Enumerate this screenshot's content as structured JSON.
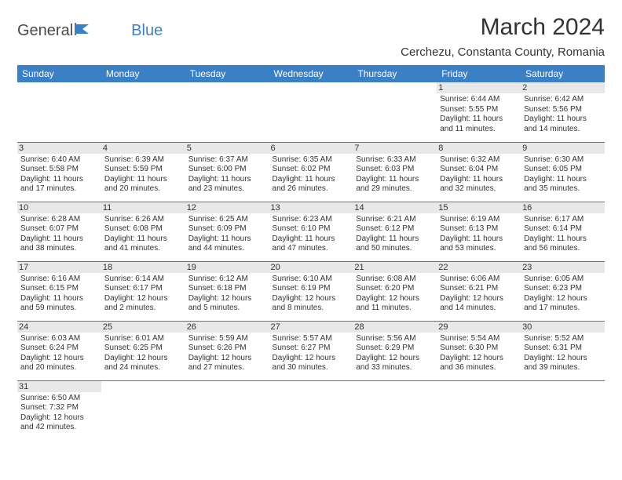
{
  "logo": {
    "part1": "General",
    "part2": "Blue"
  },
  "header": {
    "month_title": "March 2024",
    "location": "Cerchezu, Constanta County, Romania"
  },
  "colors": {
    "header_bg": "#3b7fc4",
    "header_text": "#ffffff",
    "daynum_bg": "#e8e8e8",
    "border": "#3b7fc4",
    "text": "#333333"
  },
  "day_headers": [
    "Sunday",
    "Monday",
    "Tuesday",
    "Wednesday",
    "Thursday",
    "Friday",
    "Saturday"
  ],
  "weeks": [
    [
      {
        "n": "",
        "sunrise": "",
        "sunset": "",
        "daylight1": "",
        "daylight2": ""
      },
      {
        "n": "",
        "sunrise": "",
        "sunset": "",
        "daylight1": "",
        "daylight2": ""
      },
      {
        "n": "",
        "sunrise": "",
        "sunset": "",
        "daylight1": "",
        "daylight2": ""
      },
      {
        "n": "",
        "sunrise": "",
        "sunset": "",
        "daylight1": "",
        "daylight2": ""
      },
      {
        "n": "",
        "sunrise": "",
        "sunset": "",
        "daylight1": "",
        "daylight2": ""
      },
      {
        "n": "1",
        "sunrise": "Sunrise: 6:44 AM",
        "sunset": "Sunset: 5:55 PM",
        "daylight1": "Daylight: 11 hours",
        "daylight2": "and 11 minutes."
      },
      {
        "n": "2",
        "sunrise": "Sunrise: 6:42 AM",
        "sunset": "Sunset: 5:56 PM",
        "daylight1": "Daylight: 11 hours",
        "daylight2": "and 14 minutes."
      }
    ],
    [
      {
        "n": "3",
        "sunrise": "Sunrise: 6:40 AM",
        "sunset": "Sunset: 5:58 PM",
        "daylight1": "Daylight: 11 hours",
        "daylight2": "and 17 minutes."
      },
      {
        "n": "4",
        "sunrise": "Sunrise: 6:39 AM",
        "sunset": "Sunset: 5:59 PM",
        "daylight1": "Daylight: 11 hours",
        "daylight2": "and 20 minutes."
      },
      {
        "n": "5",
        "sunrise": "Sunrise: 6:37 AM",
        "sunset": "Sunset: 6:00 PM",
        "daylight1": "Daylight: 11 hours",
        "daylight2": "and 23 minutes."
      },
      {
        "n": "6",
        "sunrise": "Sunrise: 6:35 AM",
        "sunset": "Sunset: 6:02 PM",
        "daylight1": "Daylight: 11 hours",
        "daylight2": "and 26 minutes."
      },
      {
        "n": "7",
        "sunrise": "Sunrise: 6:33 AM",
        "sunset": "Sunset: 6:03 PM",
        "daylight1": "Daylight: 11 hours",
        "daylight2": "and 29 minutes."
      },
      {
        "n": "8",
        "sunrise": "Sunrise: 6:32 AM",
        "sunset": "Sunset: 6:04 PM",
        "daylight1": "Daylight: 11 hours",
        "daylight2": "and 32 minutes."
      },
      {
        "n": "9",
        "sunrise": "Sunrise: 6:30 AM",
        "sunset": "Sunset: 6:05 PM",
        "daylight1": "Daylight: 11 hours",
        "daylight2": "and 35 minutes."
      }
    ],
    [
      {
        "n": "10",
        "sunrise": "Sunrise: 6:28 AM",
        "sunset": "Sunset: 6:07 PM",
        "daylight1": "Daylight: 11 hours",
        "daylight2": "and 38 minutes."
      },
      {
        "n": "11",
        "sunrise": "Sunrise: 6:26 AM",
        "sunset": "Sunset: 6:08 PM",
        "daylight1": "Daylight: 11 hours",
        "daylight2": "and 41 minutes."
      },
      {
        "n": "12",
        "sunrise": "Sunrise: 6:25 AM",
        "sunset": "Sunset: 6:09 PM",
        "daylight1": "Daylight: 11 hours",
        "daylight2": "and 44 minutes."
      },
      {
        "n": "13",
        "sunrise": "Sunrise: 6:23 AM",
        "sunset": "Sunset: 6:10 PM",
        "daylight1": "Daylight: 11 hours",
        "daylight2": "and 47 minutes."
      },
      {
        "n": "14",
        "sunrise": "Sunrise: 6:21 AM",
        "sunset": "Sunset: 6:12 PM",
        "daylight1": "Daylight: 11 hours",
        "daylight2": "and 50 minutes."
      },
      {
        "n": "15",
        "sunrise": "Sunrise: 6:19 AM",
        "sunset": "Sunset: 6:13 PM",
        "daylight1": "Daylight: 11 hours",
        "daylight2": "and 53 minutes."
      },
      {
        "n": "16",
        "sunrise": "Sunrise: 6:17 AM",
        "sunset": "Sunset: 6:14 PM",
        "daylight1": "Daylight: 11 hours",
        "daylight2": "and 56 minutes."
      }
    ],
    [
      {
        "n": "17",
        "sunrise": "Sunrise: 6:16 AM",
        "sunset": "Sunset: 6:15 PM",
        "daylight1": "Daylight: 11 hours",
        "daylight2": "and 59 minutes."
      },
      {
        "n": "18",
        "sunrise": "Sunrise: 6:14 AM",
        "sunset": "Sunset: 6:17 PM",
        "daylight1": "Daylight: 12 hours",
        "daylight2": "and 2 minutes."
      },
      {
        "n": "19",
        "sunrise": "Sunrise: 6:12 AM",
        "sunset": "Sunset: 6:18 PM",
        "daylight1": "Daylight: 12 hours",
        "daylight2": "and 5 minutes."
      },
      {
        "n": "20",
        "sunrise": "Sunrise: 6:10 AM",
        "sunset": "Sunset: 6:19 PM",
        "daylight1": "Daylight: 12 hours",
        "daylight2": "and 8 minutes."
      },
      {
        "n": "21",
        "sunrise": "Sunrise: 6:08 AM",
        "sunset": "Sunset: 6:20 PM",
        "daylight1": "Daylight: 12 hours",
        "daylight2": "and 11 minutes."
      },
      {
        "n": "22",
        "sunrise": "Sunrise: 6:06 AM",
        "sunset": "Sunset: 6:21 PM",
        "daylight1": "Daylight: 12 hours",
        "daylight2": "and 14 minutes."
      },
      {
        "n": "23",
        "sunrise": "Sunrise: 6:05 AM",
        "sunset": "Sunset: 6:23 PM",
        "daylight1": "Daylight: 12 hours",
        "daylight2": "and 17 minutes."
      }
    ],
    [
      {
        "n": "24",
        "sunrise": "Sunrise: 6:03 AM",
        "sunset": "Sunset: 6:24 PM",
        "daylight1": "Daylight: 12 hours",
        "daylight2": "and 20 minutes."
      },
      {
        "n": "25",
        "sunrise": "Sunrise: 6:01 AM",
        "sunset": "Sunset: 6:25 PM",
        "daylight1": "Daylight: 12 hours",
        "daylight2": "and 24 minutes."
      },
      {
        "n": "26",
        "sunrise": "Sunrise: 5:59 AM",
        "sunset": "Sunset: 6:26 PM",
        "daylight1": "Daylight: 12 hours",
        "daylight2": "and 27 minutes."
      },
      {
        "n": "27",
        "sunrise": "Sunrise: 5:57 AM",
        "sunset": "Sunset: 6:27 PM",
        "daylight1": "Daylight: 12 hours",
        "daylight2": "and 30 minutes."
      },
      {
        "n": "28",
        "sunrise": "Sunrise: 5:56 AM",
        "sunset": "Sunset: 6:29 PM",
        "daylight1": "Daylight: 12 hours",
        "daylight2": "and 33 minutes."
      },
      {
        "n": "29",
        "sunrise": "Sunrise: 5:54 AM",
        "sunset": "Sunset: 6:30 PM",
        "daylight1": "Daylight: 12 hours",
        "daylight2": "and 36 minutes."
      },
      {
        "n": "30",
        "sunrise": "Sunrise: 5:52 AM",
        "sunset": "Sunset: 6:31 PM",
        "daylight1": "Daylight: 12 hours",
        "daylight2": "and 39 minutes."
      }
    ],
    [
      {
        "n": "31",
        "sunrise": "Sunrise: 6:50 AM",
        "sunset": "Sunset: 7:32 PM",
        "daylight1": "Daylight: 12 hours",
        "daylight2": "and 42 minutes."
      },
      {
        "n": "",
        "sunrise": "",
        "sunset": "",
        "daylight1": "",
        "daylight2": ""
      },
      {
        "n": "",
        "sunrise": "",
        "sunset": "",
        "daylight1": "",
        "daylight2": ""
      },
      {
        "n": "",
        "sunrise": "",
        "sunset": "",
        "daylight1": "",
        "daylight2": ""
      },
      {
        "n": "",
        "sunrise": "",
        "sunset": "",
        "daylight1": "",
        "daylight2": ""
      },
      {
        "n": "",
        "sunrise": "",
        "sunset": "",
        "daylight1": "",
        "daylight2": ""
      },
      {
        "n": "",
        "sunrise": "",
        "sunset": "",
        "daylight1": "",
        "daylight2": ""
      }
    ]
  ]
}
